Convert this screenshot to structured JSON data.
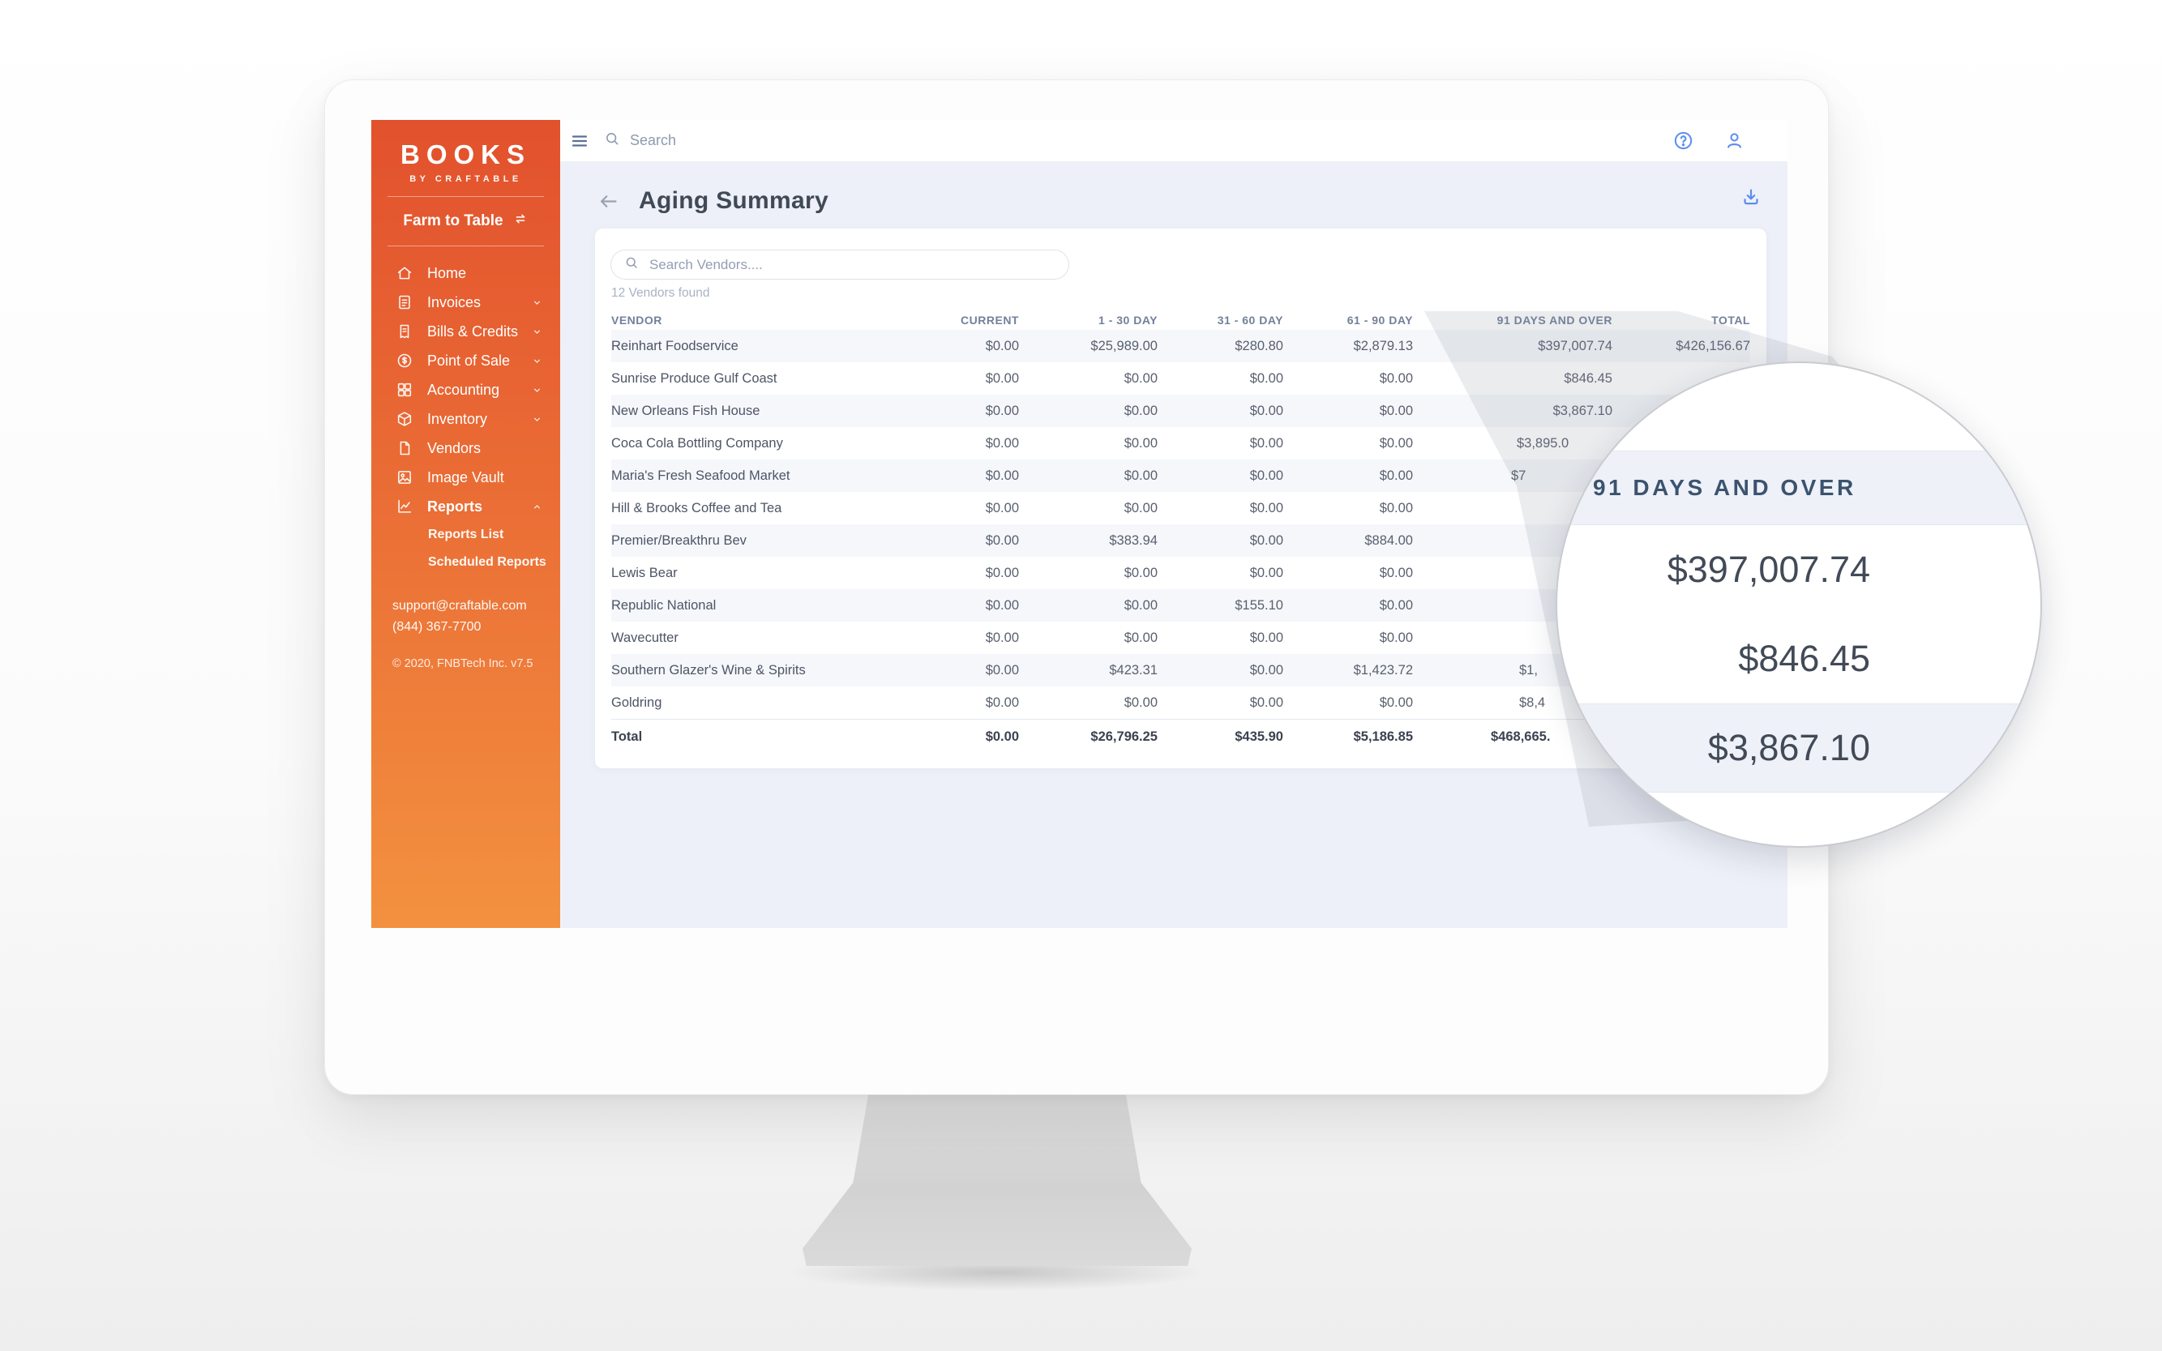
{
  "colors": {
    "sidebar_gradient_top": "#e2512d",
    "sidebar_gradient_bottom": "#f3913f",
    "accent_blue": "#5b8def",
    "content_background": "#edf0f8",
    "row_stripe": "#f5f7fb",
    "table_header_text": "#73809b",
    "magnifier_header_text": "#3b536f"
  },
  "branding": {
    "logo": "BOOKS",
    "logo_sub": "BY CRAFTABLE",
    "org": "Farm to Table"
  },
  "sidebar": {
    "items": [
      {
        "icon": "home-icon",
        "label": "Home",
        "chevron": null,
        "active": false
      },
      {
        "icon": "invoices-icon",
        "label": "Invoices",
        "chevron": "down",
        "active": false
      },
      {
        "icon": "bills-icon",
        "label": "Bills & Credits",
        "chevron": "down",
        "active": false
      },
      {
        "icon": "pos-icon",
        "label": "Point of Sale",
        "chevron": "down",
        "active": false
      },
      {
        "icon": "accounting-icon",
        "label": "Accounting",
        "chevron": "down",
        "active": false
      },
      {
        "icon": "inventory-icon",
        "label": "Inventory",
        "chevron": "down",
        "active": false
      },
      {
        "icon": "vendors-icon",
        "label": "Vendors",
        "chevron": null,
        "active": false
      },
      {
        "icon": "image-vault-icon",
        "label": "Image Vault",
        "chevron": null,
        "active": false
      },
      {
        "icon": "reports-icon",
        "label": "Reports",
        "chevron": "up",
        "active": true
      }
    ],
    "submenu": [
      "Reports List",
      "Scheduled Reports"
    ],
    "support_email": "support@craftable.com",
    "support_phone": "(844) 367-7700",
    "copyright": "© 2020, FNBTech Inc. v7.5"
  },
  "topbar": {
    "search_placeholder": "Search",
    "icons": [
      "menu-icon",
      "search-icon",
      "help-icon",
      "user-icon"
    ]
  },
  "page": {
    "title": "Aging Summary",
    "vendor_search_placeholder": "Search Vendors....",
    "results_count": "12 Vendors found"
  },
  "table": {
    "headers": [
      "VENDOR",
      "CURRENT",
      "1 - 30 DAY",
      "31 - 60 DAY",
      "61 - 90 DAY",
      "91 DAYS AND OVER",
      "TOTAL"
    ],
    "rows": [
      {
        "vendor": "Reinhart Foodservice",
        "current": "$0.00",
        "d1_30": "$25,989.00",
        "d31_60": "$280.80",
        "d61_90": "$2,879.13",
        "d91": "$397,007.74",
        "total": "$426,156.67"
      },
      {
        "vendor": "Sunrise Produce Gulf Coast",
        "current": "$0.00",
        "d1_30": "$0.00",
        "d31_60": "$0.00",
        "d61_90": "$0.00",
        "d91": "$846.45",
        "total": ""
      },
      {
        "vendor": "New Orleans Fish House",
        "current": "$0.00",
        "d1_30": "$0.00",
        "d31_60": "$0.00",
        "d61_90": "$0.00",
        "d91": "$3,867.10",
        "total": ""
      },
      {
        "vendor": "Coca Cola Bottling Company",
        "current": "$0.00",
        "d1_30": "$0.00",
        "d31_60": "$0.00",
        "d61_90": "$0.00",
        "d91": "$3,895.0",
        "total": ""
      },
      {
        "vendor": "Maria's Fresh Seafood Market",
        "current": "$0.00",
        "d1_30": "$0.00",
        "d31_60": "$0.00",
        "d61_90": "$0.00",
        "d91": "$7",
        "total": ""
      },
      {
        "vendor": "Hill & Brooks Coffee and Tea",
        "current": "$0.00",
        "d1_30": "$0.00",
        "d31_60": "$0.00",
        "d61_90": "$0.00",
        "d91": "",
        "total": ""
      },
      {
        "vendor": "Premier/Breakthru Bev",
        "current": "$0.00",
        "d1_30": "$383.94",
        "d31_60": "$0.00",
        "d61_90": "$884.00",
        "d91": "",
        "total": ""
      },
      {
        "vendor": "Lewis Bear",
        "current": "$0.00",
        "d1_30": "$0.00",
        "d31_60": "$0.00",
        "d61_90": "$0.00",
        "d91": "",
        "total": ""
      },
      {
        "vendor": "Republic National",
        "current": "$0.00",
        "d1_30": "$0.00",
        "d31_60": "$155.10",
        "d61_90": "$0.00",
        "d91": "",
        "total": ""
      },
      {
        "vendor": "Wavecutter",
        "current": "$0.00",
        "d1_30": "$0.00",
        "d31_60": "$0.00",
        "d61_90": "$0.00",
        "d91": "",
        "total": ""
      },
      {
        "vendor": "Southern Glazer's Wine & Spirits",
        "current": "$0.00",
        "d1_30": "$423.31",
        "d31_60": "$0.00",
        "d61_90": "$1,423.72",
        "d91": "$1,",
        "total": ""
      },
      {
        "vendor": "Goldring",
        "current": "$0.00",
        "d1_30": "$0.00",
        "d31_60": "$0.00",
        "d61_90": "$0.00",
        "d91": "$8,4",
        "total": ""
      }
    ],
    "total_row": {
      "vendor": "Total",
      "current": "$0.00",
      "d1_30": "$26,796.25",
      "d31_60": "$435.90",
      "d61_90": "$5,186.85",
      "d91": "$468,665.",
      "total": ""
    }
  },
  "magnifier": {
    "header": "91 DAYS AND OVER",
    "values": [
      "$397,007.74",
      "$846.45",
      "$3,867.10"
    ]
  }
}
